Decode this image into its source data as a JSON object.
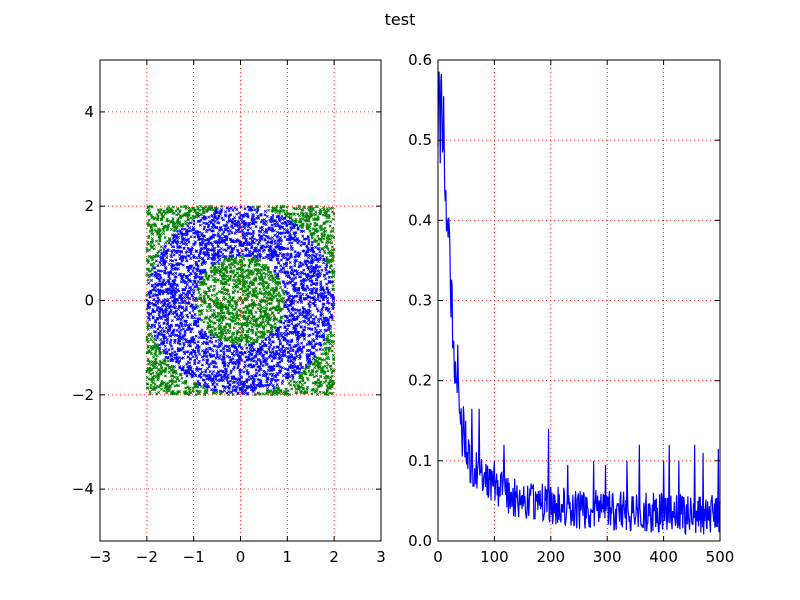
{
  "figure": {
    "suptitle": "test"
  },
  "colors": {
    "outer_class": "#008000",
    "middle_class": "#0000ff",
    "loss_line": "#0000ff",
    "grid": "#ff0000",
    "frame": "#000000"
  },
  "chart_data": [
    {
      "type": "scatter",
      "title": "",
      "xlabel": "",
      "ylabel": "",
      "xlim": [
        -3,
        3
      ],
      "ylim": [
        -5.1,
        5.1
      ],
      "xticks": [
        -3,
        -2,
        -1,
        0,
        1,
        2,
        3
      ],
      "xtick_labels": [
        "−3",
        "−2",
        "−1",
        "0",
        "1",
        "2",
        "3"
      ],
      "yticks": [
        -4,
        -2,
        0,
        2,
        4
      ],
      "ytick_labels": [
        "−4",
        "−2",
        "0",
        "2",
        "4"
      ],
      "grid": true,
      "grid_style": "dotted",
      "sample_region": {
        "x": [
          -2,
          2
        ],
        "y": [
          -2,
          2
        ]
      },
      "classes": [
        {
          "color": "#008000",
          "rule": "radius < 0.95"
        },
        {
          "color": "#0000ff",
          "rule": "0.95 <= radius < 2.0"
        },
        {
          "color": "#008000",
          "rule": "radius >= 2.0"
        }
      ],
      "approx_point_count": 5000
    },
    {
      "type": "line",
      "title": "",
      "xlabel": "",
      "ylabel": "",
      "xlim": [
        0,
        500
      ],
      "ylim": [
        0.0,
        0.6
      ],
      "xticks": [
        0,
        100,
        200,
        300,
        400,
        500
      ],
      "xtick_labels": [
        "0",
        "100",
        "200",
        "300",
        "400",
        "500"
      ],
      "yticks": [
        0.0,
        0.1,
        0.2,
        0.3,
        0.4,
        0.5,
        0.6
      ],
      "ytick_labels": [
        "0.0",
        "0.1",
        "0.2",
        "0.3",
        "0.4",
        "0.5",
        "0.6"
      ],
      "grid": true,
      "grid_style": "dotted",
      "series": [
        {
          "color": "#0000ff",
          "keypoints": [
            [
              0,
              0.5
            ],
            [
              2,
              0.57
            ],
            [
              4,
              0.51
            ],
            [
              6,
              0.56
            ],
            [
              8,
              0.45
            ],
            [
              10,
              0.52
            ],
            [
              12,
              0.47
            ],
            [
              15,
              0.42
            ],
            [
              18,
              0.4
            ],
            [
              20,
              0.36
            ],
            [
              22,
              0.33
            ],
            [
              25,
              0.29
            ],
            [
              28,
              0.25
            ],
            [
              30,
              0.22
            ],
            [
              33,
              0.2
            ],
            [
              36,
              0.18
            ],
            [
              40,
              0.15
            ],
            [
              45,
              0.13
            ],
            [
              50,
              0.12
            ],
            [
              55,
              0.1
            ],
            [
              60,
              0.09
            ],
            [
              70,
              0.085
            ],
            [
              80,
              0.08
            ],
            [
              100,
              0.07
            ],
            [
              120,
              0.06
            ],
            [
              150,
              0.05
            ],
            [
              200,
              0.045
            ],
            [
              250,
              0.04
            ],
            [
              300,
              0.038
            ],
            [
              350,
              0.036
            ],
            [
              400,
              0.035
            ],
            [
              450,
              0.033
            ],
            [
              500,
              0.032
            ]
          ],
          "spikes": [
            [
              35,
              0.245
            ],
            [
              60,
              0.165
            ],
            [
              73,
              0.165
            ],
            [
              100,
              0.1
            ],
            [
              117,
              0.12
            ],
            [
              196,
              0.14
            ],
            [
              230,
              0.095
            ],
            [
              276,
              0.1
            ],
            [
              297,
              0.095
            ],
            [
              335,
              0.1
            ],
            [
              357,
              0.12
            ],
            [
              369,
              0.06
            ],
            [
              400,
              0.1
            ],
            [
              410,
              0.12
            ],
            [
              427,
              0.1
            ],
            [
              455,
              0.12
            ],
            [
              470,
              0.11
            ],
            [
              497,
              0.115
            ],
            [
              500,
              0.05
            ]
          ],
          "noise_amplitude": 0.025,
          "n_points": 500
        }
      ]
    }
  ]
}
